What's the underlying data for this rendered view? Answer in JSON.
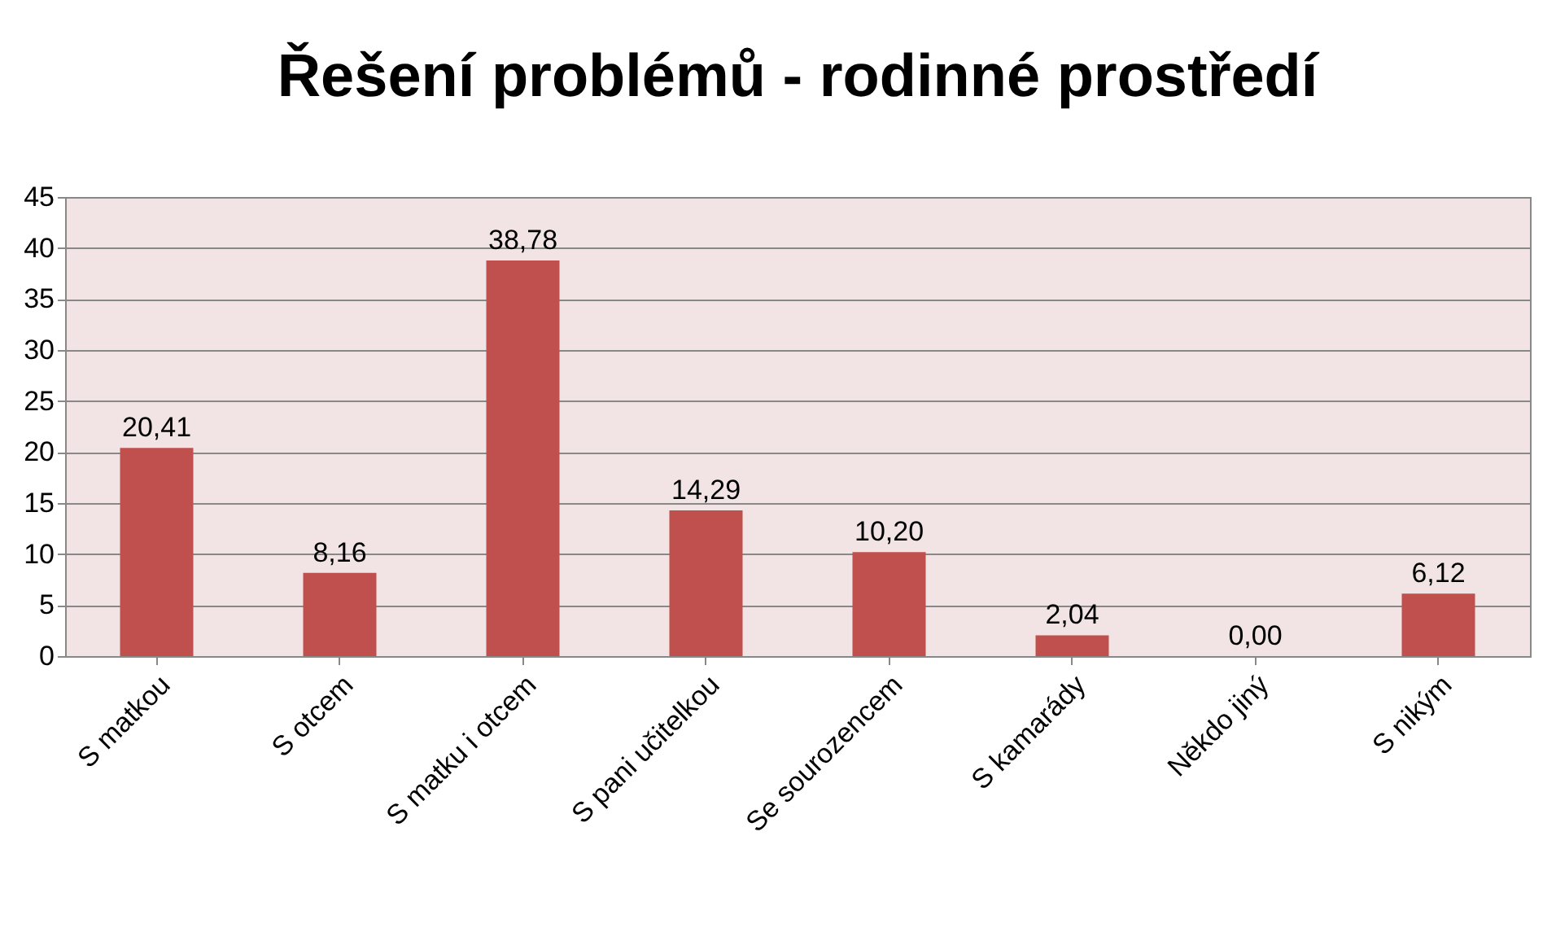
{
  "chart_data": {
    "type": "bar",
    "title": "Řešení problémů - rodinné prostředí",
    "categories": [
      "S matkou",
      "S otcem",
      "S matku i otcem",
      "S pani učitelkou",
      "Se sourozencem",
      "S kamarády",
      "Někdo jiný",
      "S nikým"
    ],
    "values": [
      20.41,
      8.16,
      38.78,
      14.29,
      10.2,
      2.04,
      0.0,
      6.12
    ],
    "value_labels": [
      "20,41",
      "8,16",
      "38,78",
      "14,29",
      "10,20",
      "2,04",
      "0,00",
      "6,12"
    ],
    "color": "#c0504d",
    "ylim": [
      0,
      45
    ],
    "yticks": [
      0,
      5,
      10,
      15,
      20,
      25,
      30,
      35,
      40,
      45
    ],
    "grid": "y"
  }
}
